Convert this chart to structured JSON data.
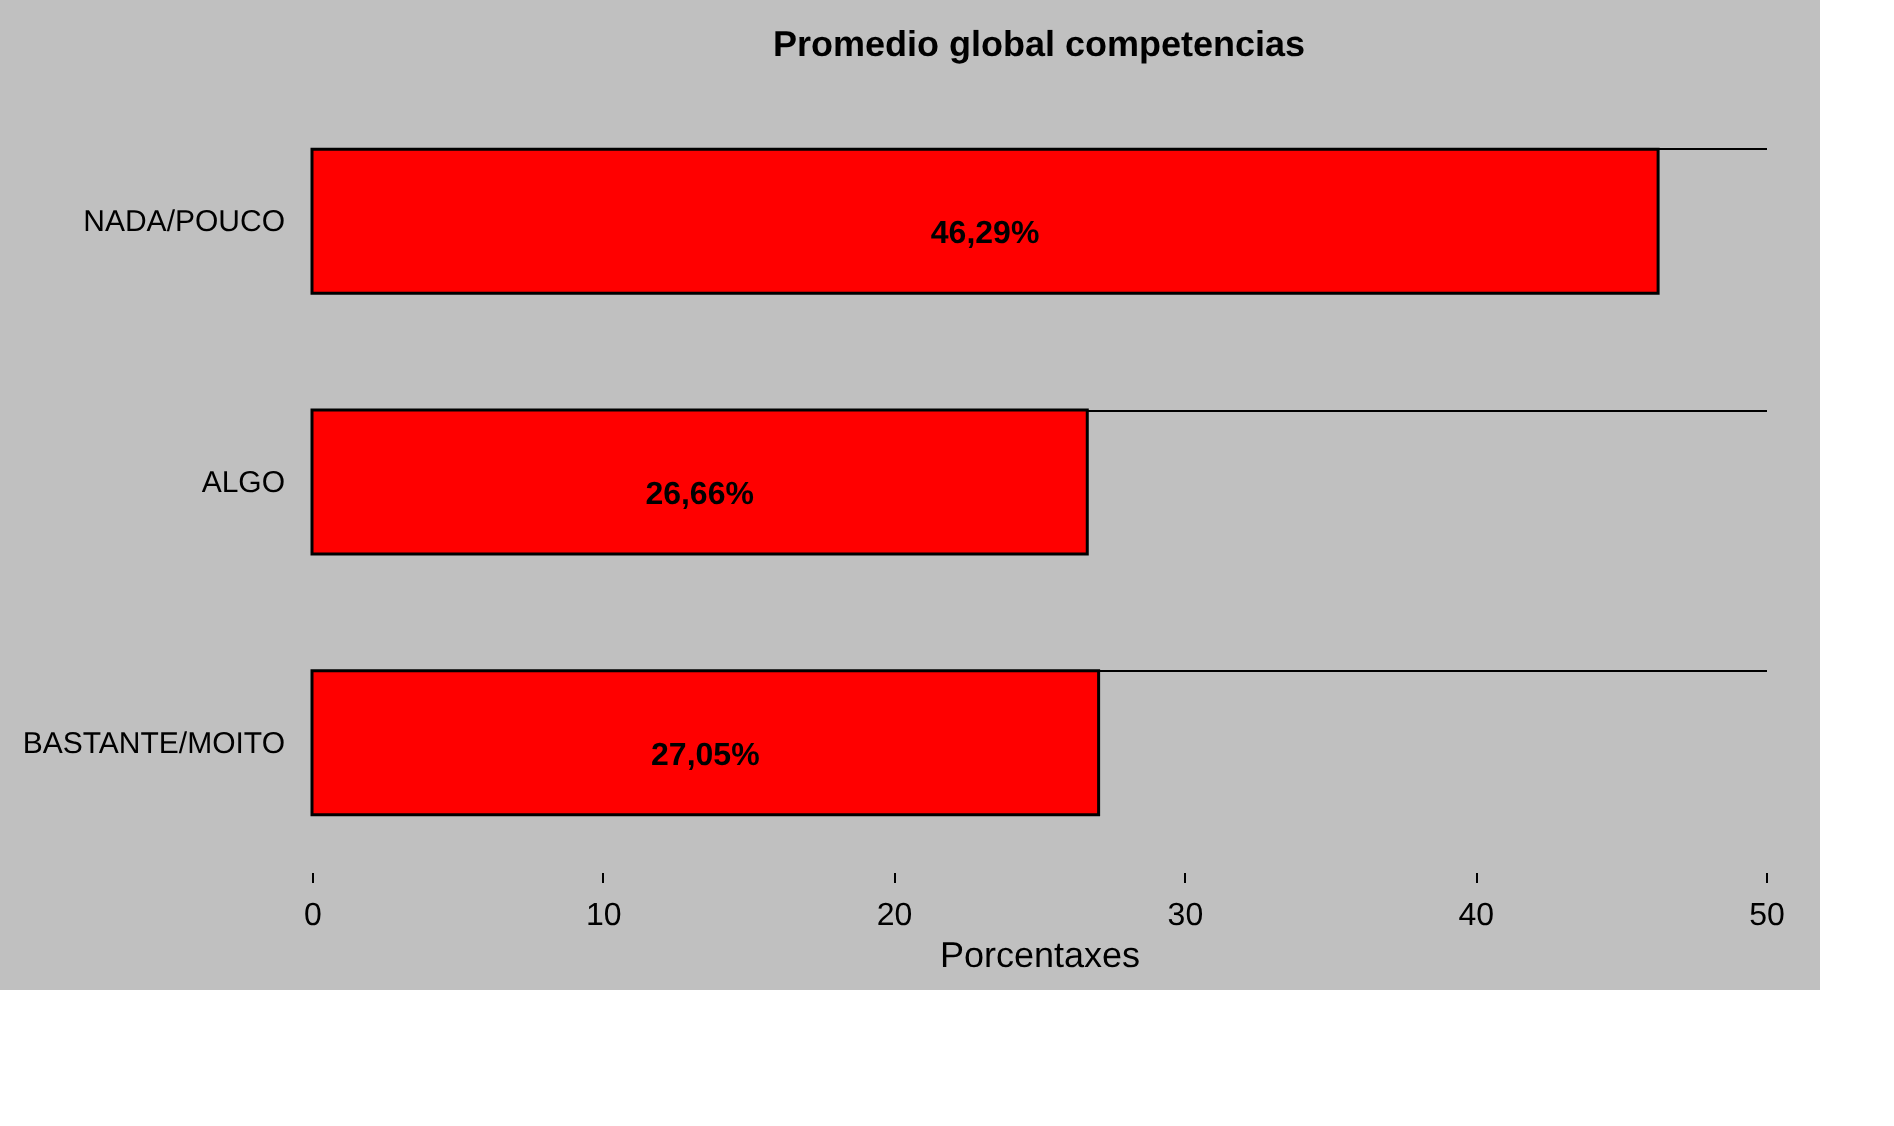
{
  "chart_data": {
    "type": "bar",
    "orientation": "horizontal",
    "title": "Promedio global competencias",
    "xlabel": "Porcentaxes",
    "categories": [
      "NADA/POUCO",
      "ALGO",
      "BASTANTE/MOITO"
    ],
    "values": [
      46.29,
      26.66,
      27.05
    ],
    "value_labels": [
      "46,29%",
      "26,66%",
      "27,05%"
    ],
    "color": "#ff0000",
    "xlim": [
      0,
      50
    ],
    "xticks": [
      0,
      10,
      20,
      30,
      40,
      50
    ],
    "grid": "y"
  }
}
